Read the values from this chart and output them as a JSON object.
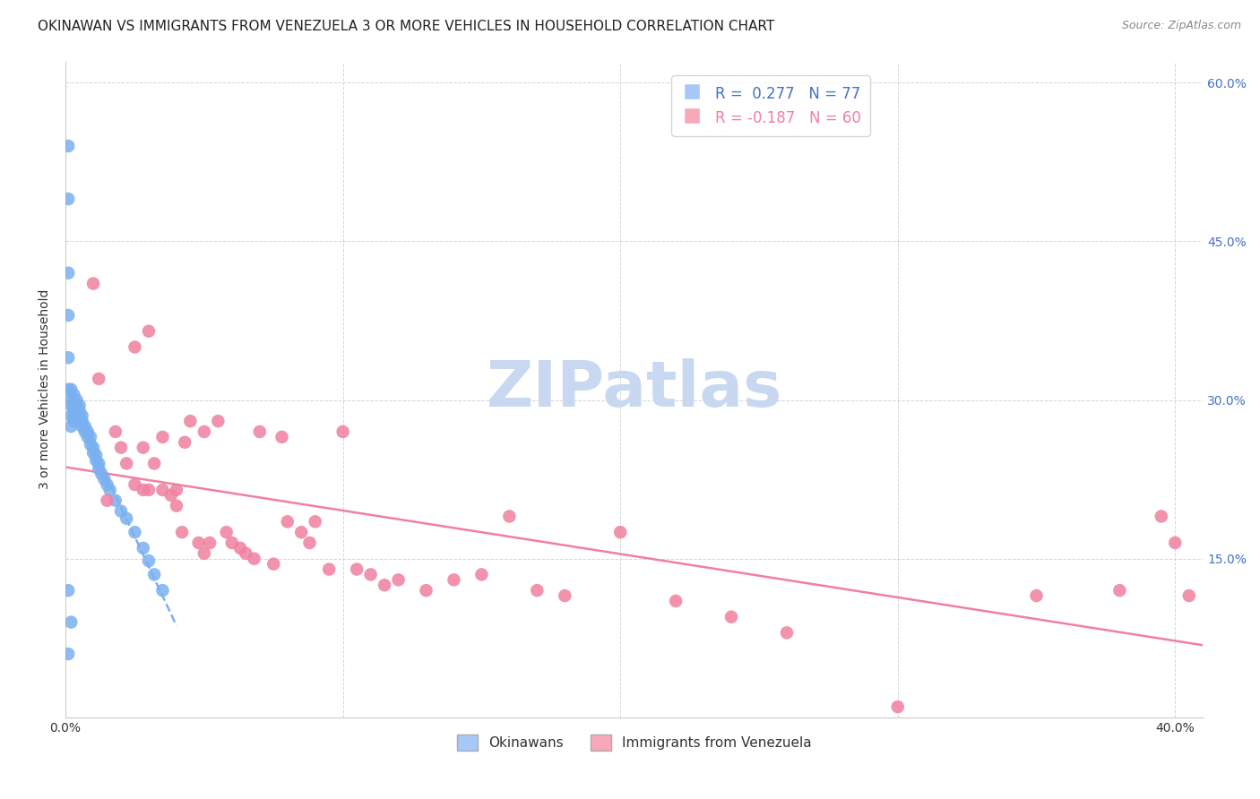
{
  "title": "OKINAWAN VS IMMIGRANTS FROM VENEZUELA 3 OR MORE VEHICLES IN HOUSEHOLD CORRELATION CHART",
  "source": "Source: ZipAtlas.com",
  "ylabel": "3 or more Vehicles in Household",
  "ylim": [
    0.0,
    0.62
  ],
  "xlim": [
    0.0,
    0.41
  ],
  "yticks": [
    0.0,
    0.15,
    0.3,
    0.45,
    0.6
  ],
  "ytick_labels": [
    "",
    "15.0%",
    "30.0%",
    "45.0%",
    "60.0%"
  ],
  "xticks": [
    0.0,
    0.1,
    0.2,
    0.3,
    0.4
  ],
  "xtick_labels": [
    "0.0%",
    "",
    "",
    "",
    "40.0%"
  ],
  "legend_color1": "#a8c8f8",
  "legend_color2": "#f8a8b8",
  "watermark": "ZIPatlas",
  "okinawan_color": "#7ab0f0",
  "venezuela_color": "#f080a0",
  "okinawan_x": [
    0.001,
    0.001,
    0.001,
    0.001,
    0.001,
    0.001,
    0.001,
    0.001,
    0.002,
    0.002,
    0.002,
    0.002,
    0.002,
    0.002,
    0.003,
    0.003,
    0.003,
    0.003,
    0.003,
    0.004,
    0.004,
    0.004,
    0.005,
    0.005,
    0.005,
    0.006,
    0.006,
    0.006,
    0.007,
    0.007,
    0.008,
    0.008,
    0.009,
    0.009,
    0.01,
    0.01,
    0.011,
    0.011,
    0.012,
    0.012,
    0.013,
    0.014,
    0.015,
    0.016,
    0.018,
    0.02,
    0.022,
    0.025,
    0.028,
    0.03,
    0.032,
    0.035
  ],
  "okinawan_y": [
    0.54,
    0.49,
    0.42,
    0.38,
    0.34,
    0.31,
    0.12,
    0.06,
    0.31,
    0.3,
    0.295,
    0.285,
    0.275,
    0.09,
    0.305,
    0.295,
    0.29,
    0.285,
    0.28,
    0.3,
    0.295,
    0.29,
    0.295,
    0.29,
    0.285,
    0.285,
    0.28,
    0.275,
    0.275,
    0.27,
    0.27,
    0.265,
    0.265,
    0.258,
    0.255,
    0.25,
    0.248,
    0.243,
    0.24,
    0.235,
    0.23,
    0.225,
    0.22,
    0.215,
    0.205,
    0.195,
    0.188,
    0.175,
    0.16,
    0.148,
    0.135,
    0.12
  ],
  "venezuela_x": [
    0.01,
    0.012,
    0.015,
    0.018,
    0.02,
    0.022,
    0.025,
    0.025,
    0.028,
    0.028,
    0.03,
    0.03,
    0.032,
    0.035,
    0.035,
    0.038,
    0.04,
    0.04,
    0.042,
    0.043,
    0.045,
    0.048,
    0.05,
    0.05,
    0.052,
    0.055,
    0.058,
    0.06,
    0.063,
    0.065,
    0.068,
    0.07,
    0.075,
    0.078,
    0.08,
    0.085,
    0.088,
    0.09,
    0.095,
    0.1,
    0.105,
    0.11,
    0.115,
    0.12,
    0.13,
    0.14,
    0.15,
    0.16,
    0.17,
    0.18,
    0.2,
    0.22,
    0.24,
    0.26,
    0.3,
    0.35,
    0.38,
    0.395,
    0.4,
    0.405
  ],
  "venezuela_y": [
    0.41,
    0.32,
    0.205,
    0.27,
    0.255,
    0.24,
    0.35,
    0.22,
    0.215,
    0.255,
    0.365,
    0.215,
    0.24,
    0.265,
    0.215,
    0.21,
    0.2,
    0.215,
    0.175,
    0.26,
    0.28,
    0.165,
    0.155,
    0.27,
    0.165,
    0.28,
    0.175,
    0.165,
    0.16,
    0.155,
    0.15,
    0.27,
    0.145,
    0.265,
    0.185,
    0.175,
    0.165,
    0.185,
    0.14,
    0.27,
    0.14,
    0.135,
    0.125,
    0.13,
    0.12,
    0.13,
    0.135,
    0.19,
    0.12,
    0.115,
    0.175,
    0.11,
    0.095,
    0.08,
    0.01,
    0.115,
    0.12,
    0.19,
    0.165,
    0.115
  ],
  "background_color": "#ffffff",
  "grid_color": "#cccccc",
  "right_axis_color": "#4472c4",
  "title_fontsize": 11,
  "axis_label_fontsize": 10,
  "tick_fontsize": 10,
  "watermark_color": "#c8d8f0",
  "watermark_fontsize": 52
}
